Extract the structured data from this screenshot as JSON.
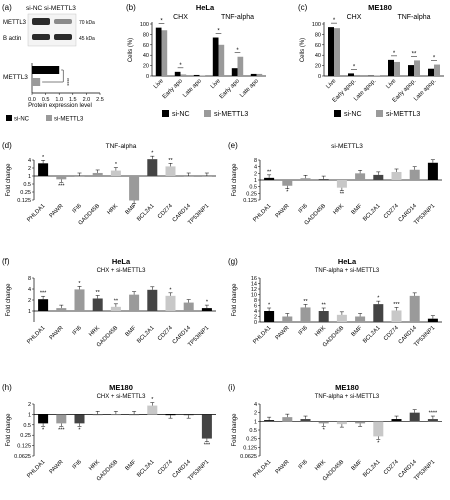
{
  "colors": {
    "si_nc": "#000000",
    "si_mettl3": "#9a9a9a",
    "light": "#c8c8c8",
    "dark": "#444444"
  },
  "panel_a": {
    "label": "(a)",
    "header": "si-NC  si-METTL3",
    "blot_rows": [
      {
        "protein": "METTL3",
        "size": "70 kDa"
      },
      {
        "protein": "B actin",
        "size": "45 kDa"
      }
    ],
    "bar_label": "METTL3",
    "xlabel": "Protein expression level",
    "xticks": [
      "0.0",
      "0.5",
      "1.0",
      "1.5",
      "2.0",
      "2.5"
    ],
    "sig": "****",
    "legend": [
      "si-NC",
      "si-METTL3"
    ]
  },
  "chart_data": [
    {
      "id": "b",
      "panel_label": "(b)",
      "type": "bar",
      "title": "HeLa",
      "group_titles": [
        "CHX",
        "TNF-alpha"
      ],
      "ylabel": "Cells (%)",
      "ylim": [
        0,
        100
      ],
      "yticks": [
        "0",
        "20",
        "40",
        "60",
        "80",
        "100"
      ],
      "categories": [
        "Live",
        "Early apo",
        "Late apo",
        "Live",
        "Early apo",
        "Late apo"
      ],
      "series": [
        {
          "name": "si-NC",
          "values": [
            93,
            8,
            2,
            74,
            15,
            4
          ]
        },
        {
          "name": "si-METTL3",
          "values": [
            88,
            3,
            1,
            60,
            37,
            4
          ]
        }
      ],
      "sig": [
        "*",
        "*",
        "",
        "*",
        "*",
        ""
      ],
      "legend": [
        "si-NC",
        "si-METTL3"
      ]
    },
    {
      "id": "c",
      "panel_label": "(c)",
      "type": "bar",
      "title": "ME180",
      "group_titles": [
        "CHX",
        "TNF-alpha"
      ],
      "ylabel": "Cells (%)",
      "ylim": [
        0,
        100
      ],
      "yticks": [
        "0",
        "20",
        "40",
        "60",
        "80",
        "100"
      ],
      "categories": [
        "Live",
        "Early apop.",
        "Late apop.",
        "Live",
        "Early apop.",
        "Late apop."
      ],
      "series": [
        {
          "name": "si-NC",
          "values": [
            94,
            5,
            1,
            31,
            21,
            14
          ]
        },
        {
          "name": "si-METTL3",
          "values": [
            92,
            2,
            1,
            27,
            30,
            22
          ]
        }
      ],
      "sig": [
        "*",
        "*",
        "",
        "*",
        "**",
        "*"
      ],
      "legend": [
        "si-NC",
        "si-METTL3"
      ]
    },
    {
      "id": "d",
      "panel_label": "(d)",
      "type": "bar",
      "title": "TNF-alpha",
      "ylabel": "Fold change",
      "scale": "log2",
      "ylim": [
        0.125,
        4
      ],
      "yticks": [
        "4",
        "2",
        "1",
        "0.5",
        "0.25",
        "0.125"
      ],
      "categories": [
        "PHLDA1",
        "PAWR",
        "IFI6",
        "GADD45B",
        "HRK",
        "BMF",
        "BCL2A1",
        "CD274",
        "CARD14",
        "TP53INP1"
      ],
      "values": [
        3.0,
        0.75,
        1.0,
        1.3,
        1.6,
        0.12,
        4.3,
        2.3,
        1.0,
        1.0
      ],
      "shades": [
        "#000000",
        "#9a9a9a",
        "#9a9a9a",
        "#9a9a9a",
        "#c8c8c8",
        "#9a9a9a",
        "#444444",
        "#c8c8c8",
        "#9a9a9a",
        "#9a9a9a"
      ],
      "sig": [
        "*",
        "***",
        "",
        "",
        "*",
        "*",
        "*",
        "**",
        "",
        ""
      ]
    },
    {
      "id": "e",
      "panel_label": "(e)",
      "type": "bar",
      "title": "si-METTL3",
      "ylabel": "Fold change",
      "scale": "log2",
      "ylim": [
        0.125,
        8
      ],
      "yticks": [
        "8",
        "4",
        "2",
        "1",
        "0.5",
        "0.25",
        "0.125"
      ],
      "categories": [
        "PHLDA1",
        "PAWR",
        "IFI6",
        "GADD45B",
        "HRK",
        "BMF",
        "BCL2A1",
        "CD274",
        "CARD14",
        "TP53INP1"
      ],
      "values": [
        1.25,
        0.55,
        1.2,
        1.1,
        0.45,
        2.0,
        1.7,
        2.3,
        2.9,
        6.0
      ],
      "shades": [
        "#000000",
        "#9a9a9a",
        "#9a9a9a",
        "#444444",
        "#c8c8c8",
        "#9a9a9a",
        "#444444",
        "#c8c8c8",
        "#9a9a9a",
        "#000000"
      ],
      "sig": [
        "**",
        "*",
        "",
        "",
        "**",
        "",
        "",
        "",
        "",
        ""
      ]
    },
    {
      "id": "f",
      "panel_label": "(f)",
      "type": "bar",
      "title": "HeLa",
      "subtitle": "CHX + si-METTL3",
      "ylabel": "Fold change",
      "scale": "log2",
      "ylim": [
        0.5,
        8
      ],
      "yticks": [
        "8",
        "4",
        "2",
        "1"
      ],
      "categories": [
        "PHLDA1",
        "PAWR",
        "IFI6",
        "HRK",
        "GADD45B",
        "BMF",
        "BCL2A1",
        "CD274",
        "CARD14",
        "TP53INP1"
      ],
      "values": [
        2.1,
        1.2,
        3.9,
        2.2,
        1.3,
        2.8,
        3.8,
        2.6,
        1.7,
        1.2
      ],
      "shades": [
        "#000000",
        "#9a9a9a",
        "#9a9a9a",
        "#444444",
        "#c8c8c8",
        "#9a9a9a",
        "#444444",
        "#c8c8c8",
        "#9a9a9a",
        "#000000"
      ],
      "sig": [
        "***",
        "",
        "*",
        "**",
        "**",
        "",
        "",
        "*",
        "",
        "*"
      ]
    },
    {
      "id": "g",
      "panel_label": "(g)",
      "type": "bar",
      "title": "HeLa",
      "subtitle": "TNF-alpha + si-METTL3",
      "ylabel": "Fold change",
      "scale": "linear",
      "ylim": [
        0,
        16
      ],
      "yticks": [
        "16",
        "14",
        "12",
        "10",
        "8",
        "6",
        "4",
        "2",
        "0"
      ],
      "categories": [
        "PHLDA1",
        "PAWR",
        "IFI6",
        "HRK",
        "GADD45B",
        "BMF",
        "BCL2A1",
        "CD274",
        "CARD14",
        "TP53INP1"
      ],
      "values": [
        4.0,
        2.0,
        5.3,
        4.0,
        2.6,
        2.0,
        6.5,
        4.2,
        9.5,
        1.2
      ],
      "shades": [
        "#000000",
        "#9a9a9a",
        "#9a9a9a",
        "#444444",
        "#c8c8c8",
        "#9a9a9a",
        "#444444",
        "#c8c8c8",
        "#9a9a9a",
        "#000000"
      ],
      "sig": [
        "*",
        "",
        "**",
        "**",
        "",
        "",
        "*",
        "***",
        "",
        ""
      ]
    },
    {
      "id": "h",
      "panel_label": "(h)",
      "type": "bar",
      "title": "ME180",
      "subtitle": "CHX + si-METTL3",
      "ylabel": "Fold change",
      "scale": "log2",
      "ylim": [
        0.0625,
        2
      ],
      "yticks": [
        "2",
        "1",
        "0.5",
        "0.25",
        "0.125",
        "0.0625"
      ],
      "categories": [
        "PHLDA1",
        "PAWR",
        "IFI6",
        "HRK",
        "GADD45B",
        "BMF",
        "BCL2A1",
        "CD274",
        "CARD14",
        "TP53INP1"
      ],
      "values": [
        0.55,
        0.55,
        0.55,
        1.0,
        1.0,
        1.0,
        1.8,
        0.95,
        0.95,
        0.2
      ],
      "shades": [
        "#000000",
        "#9a9a9a",
        "#444444",
        "#9a9a9a",
        "#c8c8c8",
        "#9a9a9a",
        "#c8c8c8",
        "#000000",
        "#444444",
        "#444444"
      ],
      "sig": [
        "*",
        "***",
        "*",
        "",
        "",
        "",
        "*",
        "",
        "",
        "***"
      ]
    },
    {
      "id": "i",
      "panel_label": "(i)",
      "type": "bar",
      "title": "ME180",
      "subtitle": "TNF-alpha + si-METTL3",
      "ylabel": "Fold change",
      "scale": "log2",
      "ylim": [
        0.0625,
        4
      ],
      "yticks": [
        "4",
        "2",
        "1",
        "0.5",
        "0.25",
        "0.125",
        "0.0625"
      ],
      "categories": [
        "PHLDA1",
        "PAWR",
        "IFI6",
        "HRK",
        "GADD45B",
        "BMF",
        "BCL2A1",
        "CD274",
        "CARD14",
        "TP53INP1"
      ],
      "values": [
        1.1,
        1.4,
        1.2,
        0.85,
        0.8,
        0.85,
        0.3,
        1.2,
        2.0,
        1.2
      ],
      "shades": [
        "#000000",
        "#9a9a9a",
        "#444444",
        "#9a9a9a",
        "#c8c8c8",
        "#9a9a9a",
        "#c8c8c8",
        "#000000",
        "#444444",
        "#444444"
      ],
      "sig": [
        "",
        "",
        "",
        "*",
        "",
        "",
        "*",
        "",
        "",
        "****"
      ]
    }
  ]
}
